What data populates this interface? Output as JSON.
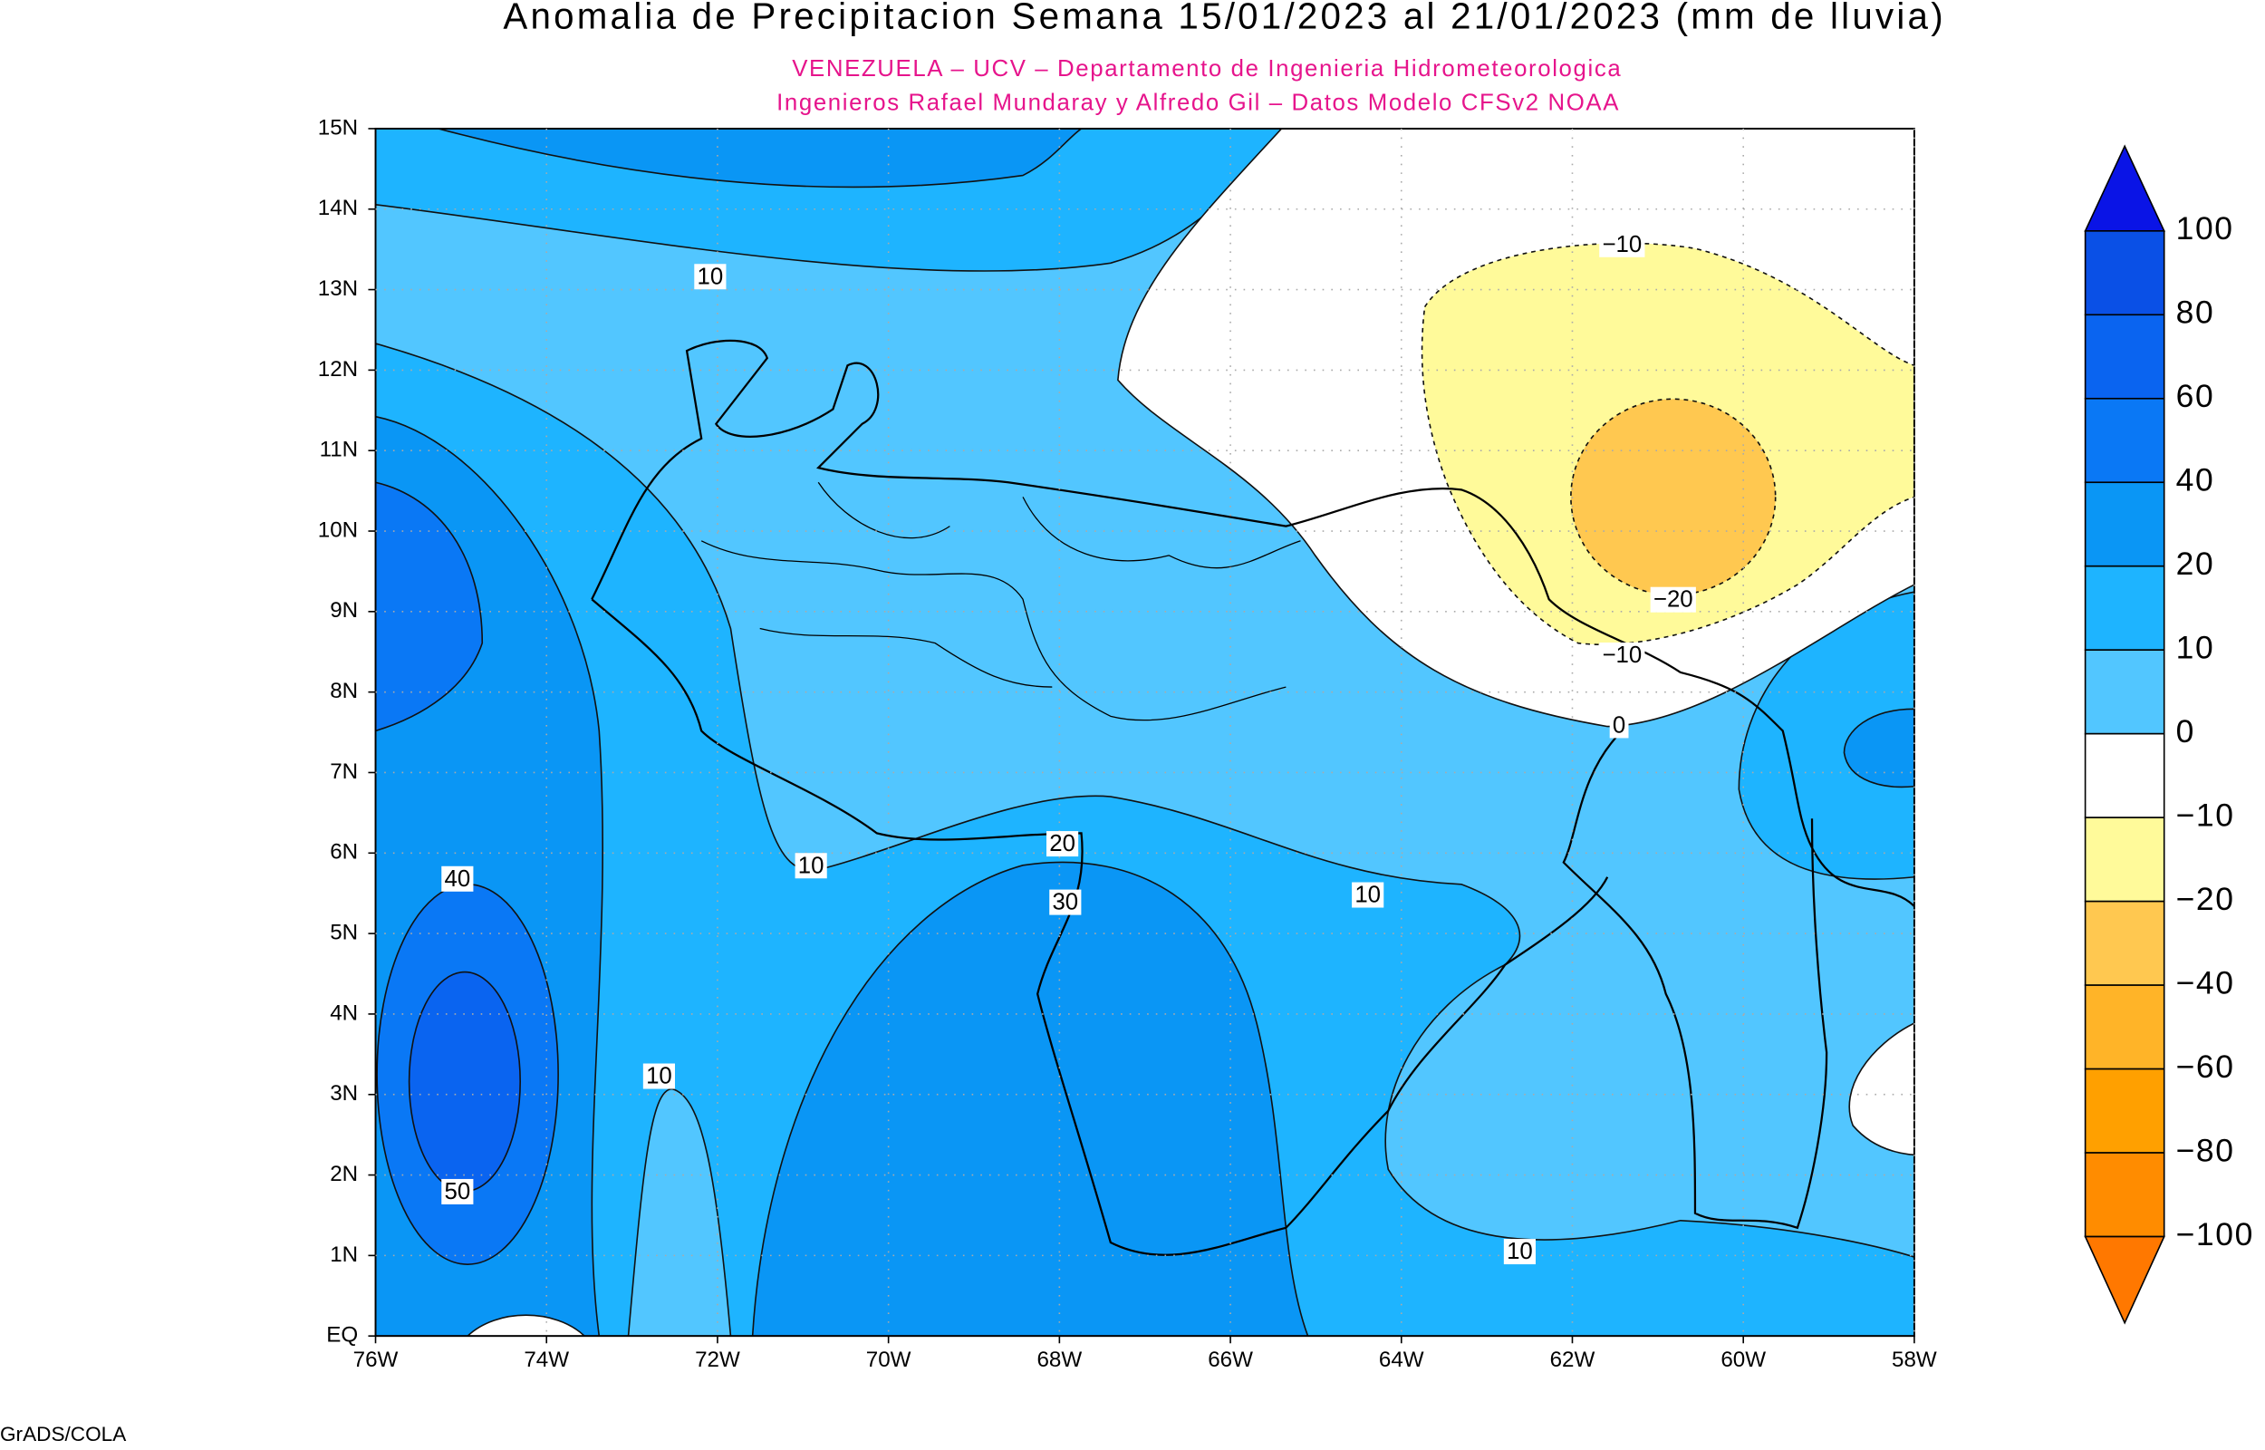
{
  "header": {
    "title": "Anomalia de Precipitacion Semana 15/01/2023 al 21/01/2023 (mm de lluvia)",
    "subtitle_lines": [
      "VENEZUELA – UCV – Departamento de Ingenieria Hidrometeorologica",
      "Ingenieros Rafael Mundaray y Alfredo Gil – Datos Modelo CFSv2 NOAA"
    ]
  },
  "map": {
    "lat_labels": [
      "15N",
      "14N",
      "13N",
      "12N",
      "11N",
      "10N",
      "9N",
      "8N",
      "7N",
      "6N",
      "5N",
      "4N",
      "3N",
      "2N",
      "1N",
      "EQ"
    ],
    "lon_labels": [
      "76W",
      "74W",
      "72W",
      "70W",
      "68W",
      "66W",
      "64W",
      "62W",
      "60W",
      "58W"
    ],
    "contour_labels": [
      "10",
      "10",
      "10",
      "10",
      "10",
      "40",
      "50",
      "20",
      "30",
      "−10",
      "−20",
      "−10",
      "0"
    ]
  },
  "colorbar": {
    "labels": [
      "100",
      "80",
      "60",
      "40",
      "20",
      "10",
      "0",
      "−10",
      "−20",
      "−40",
      "−60",
      "−80",
      "−100"
    ],
    "colors": [
      "#0a14e6",
      "#0a50e6",
      "#0a64f0",
      "#0a78f5",
      "#0a96f5",
      "#1eb4ff",
      "#52c6ff",
      "#ffffff",
      "#fffa9a",
      "#ffc850",
      "#ffb428",
      "#ffa000",
      "#ff8c00",
      "#ff7800"
    ]
  },
  "footer": "GrADS/COLA"
}
